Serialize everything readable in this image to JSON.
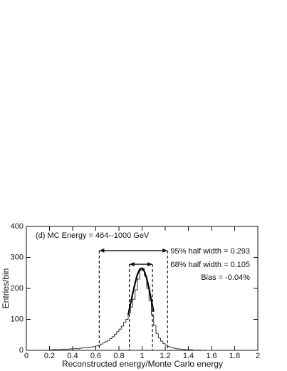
{
  "chart_data": {
    "type": "histogram",
    "annotation": "(d)  MC Energy = 464--1000 GeV",
    "bias_label": "Bias = -0.04%",
    "xlabel": "Reconstructed energy/Monte Carlo energy",
    "ylabel": "Entries/bin",
    "xlim": [
      0,
      2
    ],
    "ylim": [
      0,
      400
    ],
    "xticks": [
      0,
      0.2,
      0.4,
      0.6,
      0.8,
      1,
      1.2,
      1.4,
      1.6,
      1.8,
      2
    ],
    "yticks": [
      0,
      100,
      200,
      300,
      400
    ],
    "color": "#333333",
    "bins": [
      0.2,
      0.22,
      0.24,
      0.26,
      0.28,
      0.3,
      0.32,
      0.34,
      0.36,
      0.38,
      0.4,
      0.42,
      0.44,
      0.46,
      0.48,
      0.5,
      0.52,
      0.54,
      0.56,
      0.58,
      0.6,
      0.62,
      0.64,
      0.66,
      0.68,
      0.7,
      0.72,
      0.74,
      0.76,
      0.78,
      0.8,
      0.82,
      0.84,
      0.86,
      0.88,
      0.9,
      0.92,
      0.94,
      0.96,
      0.98,
      1,
      1.02,
      1.04,
      1.06,
      1.08,
      1.1,
      1.12,
      1.14,
      1.16,
      1.18,
      1.2,
      1.22,
      1.24,
      1.26,
      1.28,
      1.3,
      1.32,
      1.34,
      1.36,
      1.38,
      1.4,
      1.42,
      1.44,
      1.46,
      1.48,
      1.5,
      1.52,
      1.54,
      1.56,
      1.58,
      1.6
    ],
    "values": [
      2,
      2,
      3,
      2,
      3,
      3,
      4,
      3,
      4,
      5,
      5,
      6,
      5,
      7,
      8,
      9,
      8,
      10,
      11,
      12,
      14,
      16,
      20,
      24,
      28,
      32,
      38,
      44,
      52,
      60,
      68,
      78,
      90,
      100,
      120,
      140,
      165,
      195,
      230,
      258,
      265,
      240,
      200,
      160,
      115,
      80,
      55,
      40,
      30,
      22,
      17,
      13,
      10,
      8,
      6,
      5,
      4,
      3,
      3,
      2,
      2,
      2,
      1,
      1,
      1,
      1,
      0,
      1,
      0,
      0
    ],
    "fit": {
      "x": [
        0.88,
        0.9,
        0.92,
        0.94,
        0.96,
        0.98,
        1,
        1.02,
        1.04,
        1.06,
        1.08,
        1.1
      ],
      "values": [
        115,
        150,
        185,
        218,
        245,
        262,
        265,
        255,
        232,
        200,
        162,
        125
      ]
    },
    "intervals": [
      {
        "label": "95% half width = 0.293",
        "range": [
          0.63,
          1.22
        ],
        "height": 322
      },
      {
        "label": "68% half width = 0.105",
        "range": [
          0.89,
          1.09
        ],
        "height": 278
      }
    ]
  }
}
